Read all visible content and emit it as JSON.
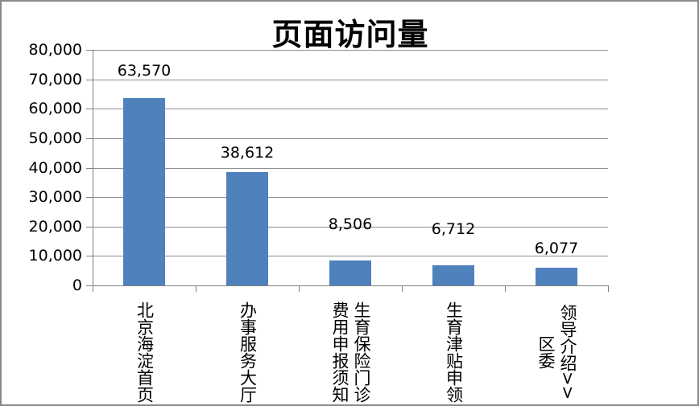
{
  "chart_data": {
    "type": "bar",
    "title": "页面访问量",
    "categories": [
      "北京海淀首页",
      "办事服务大厅",
      "生育保险门诊费用申报须知",
      "生育津贴申领",
      "领导介绍>>区委"
    ],
    "category_display_lines": [
      [
        "北京海淀首页"
      ],
      [
        "办事服务大厅"
      ],
      [
        "生育保险门诊",
        "费用申报须知"
      ],
      [
        "生育津贴申领"
      ],
      [
        "领导介绍>>",
        "区委"
      ]
    ],
    "values": [
      63570,
      38612,
      8506,
      6712,
      6077
    ],
    "value_labels": [
      "63,570",
      "38,612",
      "8,506",
      "6,712",
      "6,077"
    ],
    "xlabel": "",
    "ylabel": "",
    "ylim": [
      0,
      80000
    ],
    "y_tick_step": 10000,
    "y_tick_labels": [
      "80,000",
      "70,000",
      "60,000",
      "50,000",
      "40,000",
      "30,000",
      "20,000",
      "10,000",
      "0"
    ],
    "grid": "horizontal",
    "legend": "none",
    "category_label_orientation": "vertical",
    "colors": {
      "bar": "#4F81BD",
      "gridline": "#8E8E8E",
      "axis": "#808080",
      "text": "#000000",
      "frame_border": "#898989",
      "background": "#FFFFFF"
    }
  }
}
